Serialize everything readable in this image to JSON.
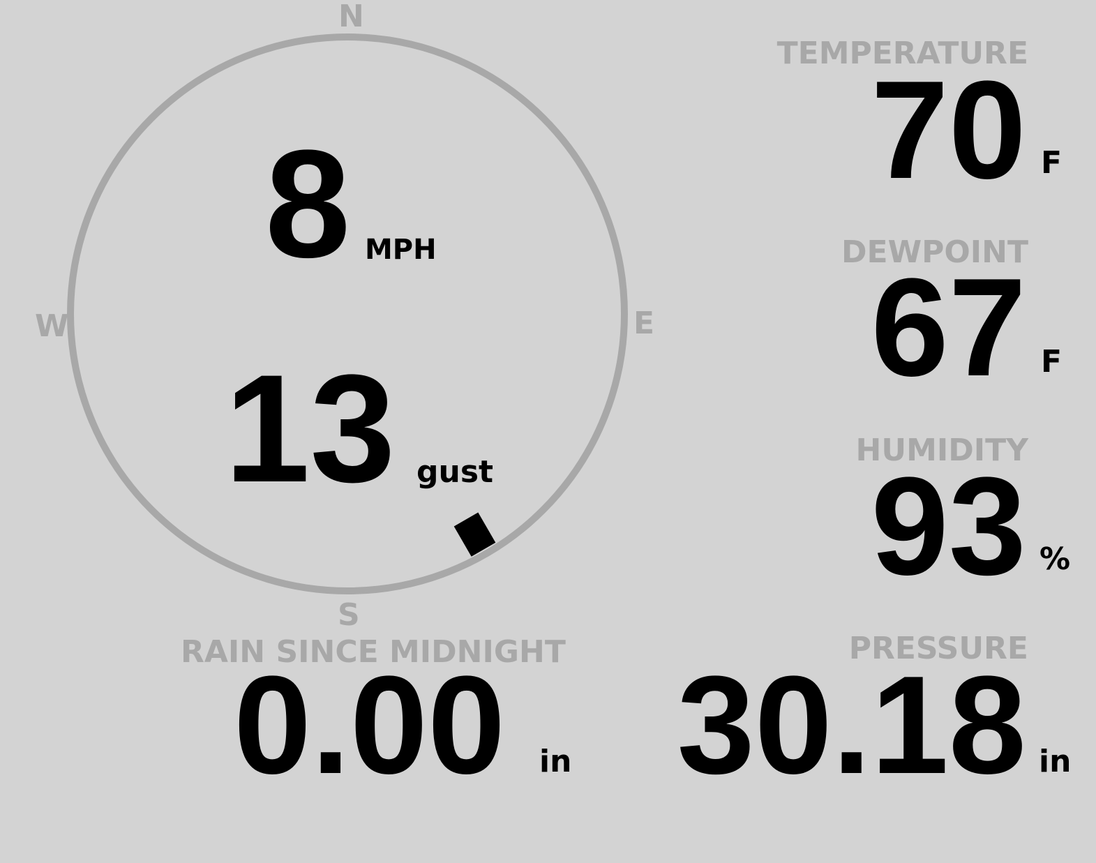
{
  "wind": {
    "speed": "8",
    "speed_unit": "MPH",
    "gust": "13",
    "gust_unit": "gust",
    "direction_degrees": 150,
    "compass": {
      "n": "N",
      "e": "E",
      "s": "S",
      "w": "W"
    }
  },
  "temperature": {
    "label": "TEMPERATURE",
    "value": "70",
    "unit": "F"
  },
  "dewpoint": {
    "label": "DEWPOINT",
    "value": "67",
    "unit": "F"
  },
  "humidity": {
    "label": "HUMIDITY",
    "value": "93",
    "unit": "%"
  },
  "rain": {
    "label": "RAIN SINCE MIDNIGHT",
    "value": "0.00",
    "unit": "in"
  },
  "pressure": {
    "label": "PRESSURE",
    "value": "30.18",
    "unit": "in"
  },
  "colors": {
    "background": "#d3d3d3",
    "muted": "#a8a8a8",
    "value": "#000000"
  }
}
